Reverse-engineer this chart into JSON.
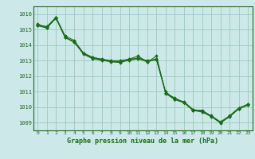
{
  "title": "Graphe pression niveau de la mer (hPa)",
  "background_color": "#cce8e8",
  "grid_color": "#99ccbb",
  "line_color": "#1a6b1a",
  "text_color": "#1a6b1a",
  "xlim": [
    -0.5,
    23.5
  ],
  "ylim": [
    1008.5,
    1016.5
  ],
  "yticks": [
    1009,
    1010,
    1011,
    1012,
    1013,
    1014,
    1015,
    1016
  ],
  "xticks": [
    0,
    1,
    2,
    3,
    4,
    5,
    6,
    7,
    8,
    9,
    10,
    11,
    12,
    13,
    14,
    15,
    16,
    17,
    18,
    19,
    20,
    21,
    22,
    23
  ],
  "series": [
    [
      1015.3,
      1015.2,
      1015.8,
      1014.6,
      1014.3,
      1013.5,
      1013.2,
      1013.1,
      1013.0,
      1013.0,
      1013.1,
      1013.3,
      1012.9,
      1013.3,
      1010.9,
      1010.6,
      1010.3,
      1009.8,
      1009.8,
      1009.4,
      1009.0,
      1009.4,
      1009.9,
      1010.2
    ],
    [
      1015.25,
      1015.1,
      1015.75,
      1014.5,
      1014.2,
      1013.45,
      1013.15,
      1013.05,
      1012.95,
      1012.9,
      1013.05,
      1013.15,
      1013.0,
      1013.05,
      1011.0,
      1010.5,
      1010.35,
      1009.85,
      1009.75,
      1009.45,
      1009.05,
      1009.45,
      1009.95,
      1010.15
    ],
    [
      1015.35,
      1015.15,
      1015.72,
      1014.52,
      1014.22,
      1013.48,
      1013.22,
      1013.08,
      1012.98,
      1012.92,
      1013.08,
      1013.18,
      1012.98,
      1013.12,
      1010.92,
      1010.52,
      1010.32,
      1009.82,
      1009.72,
      1009.42,
      1009.02,
      1009.42,
      1009.92,
      1010.18
    ],
    [
      1015.28,
      1015.12,
      1015.78,
      1014.48,
      1014.18,
      1013.42,
      1013.12,
      1013.02,
      1012.92,
      1012.88,
      1013.02,
      1013.12,
      1012.92,
      1013.08,
      1010.88,
      1010.48,
      1010.28,
      1009.78,
      1009.68,
      1009.38,
      1008.98,
      1009.38,
      1009.88,
      1010.12
    ]
  ]
}
